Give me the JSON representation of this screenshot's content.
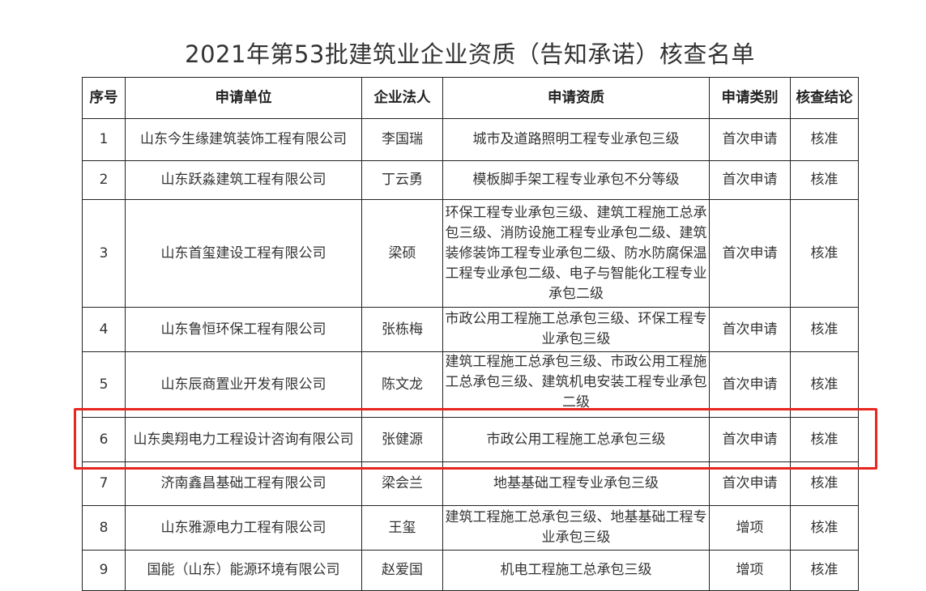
{
  "title": "2021年第53批建筑业企业资质（告知承诺）核查名单",
  "headers": [
    "序号",
    "申请单位",
    "企业法人",
    "申请资质",
    "申请类别",
    "核查结论"
  ],
  "rows": [
    {
      "no": "1",
      "company": "山东今生缘建筑装饰工程有限公司",
      "person": "李国瑞",
      "qual": "城市及道路照明工程专业承包三级",
      "type": "首次申请",
      "result": "核准"
    },
    {
      "no": "2",
      "company": "山东跃淼建筑工程有限公司",
      "person": "丁云勇",
      "qual": "模板脚手架工程专业承包不分等级",
      "type": "首次申请",
      "result": "核准"
    },
    {
      "no": "3",
      "company": "山东首玺建设工程有限公司",
      "person": "梁硕",
      "qual": "环保工程专业承包三级、建筑工程施工总承包三级、消防设施工程专业承包二级、建筑装修装饰工程专业承包二级、防水防腐保温工程专业承包二级、电子与智能化工程专业承包二级",
      "type": "首次申请",
      "result": "核准"
    },
    {
      "no": "4",
      "company": "山东鲁恒环保工程有限公司",
      "person": "张栋梅",
      "qual": "市政公用工程施工总承包三级、环保工程专业承包三级",
      "type": "首次申请",
      "result": "核准"
    },
    {
      "no": "5",
      "company": "山东辰商置业开发有限公司",
      "person": "陈文龙",
      "qual": "建筑工程施工总承包三级、市政公用工程施工总承包三级、建筑机电安装工程专业承包二级",
      "type": "首次申请",
      "result": "核准"
    },
    {
      "no": "6",
      "company": "山东奥翔电力工程设计咨询有限公司",
      "person": "张健源",
      "qual": "市政公用工程施工总承包三级",
      "type": "首次申请",
      "result": "核准"
    },
    {
      "no": "7",
      "company": "济南鑫昌基础工程有限公司",
      "person": "梁会兰",
      "qual": "地基基础工程专业承包三级",
      "type": "首次申请",
      "result": "核准"
    },
    {
      "no": "8",
      "company": "山东雅源电力工程有限公司",
      "person": "王玺",
      "qual": "建筑工程施工总承包三级、地基基础工程专业承包三级",
      "type": "增项",
      "result": "核准"
    },
    {
      "no": "9",
      "company": "国能（山东）能源环境有限公司",
      "person": "赵爱国",
      "qual": "机电工程施工总承包三级",
      "type": "增项",
      "result": "核准"
    }
  ],
  "highlight_color": "#e8261f"
}
